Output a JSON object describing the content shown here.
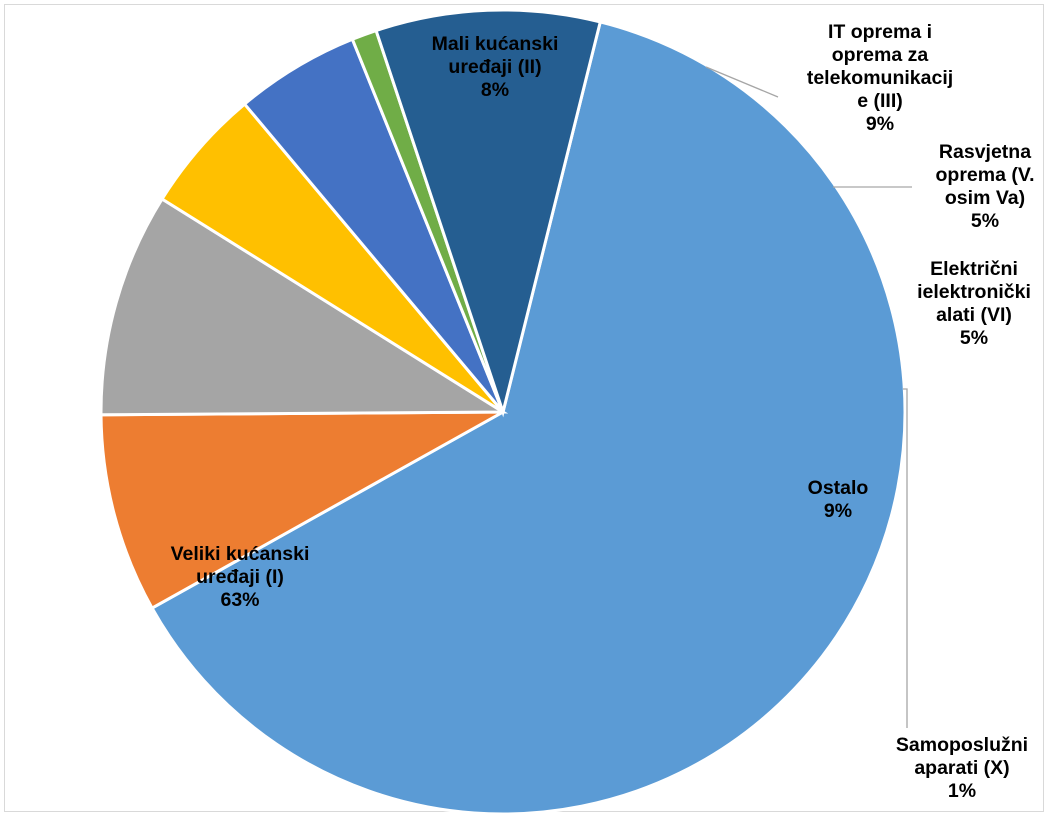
{
  "chart_data": {
    "type": "pie",
    "slices": [
      {
        "label_lines": [
          "Veliki kućanski",
          "uređaji (I)"
        ],
        "value": 63,
        "value_label": "63%",
        "color": "#5B9BD5"
      },
      {
        "label_lines": [
          "Mali kućanski",
          "uređaji (II)"
        ],
        "value": 8,
        "value_label": "8%",
        "color": "#ED7D31"
      },
      {
        "label_lines": [
          "IT oprema i",
          "oprema za",
          "telekomunikacij",
          "e (III)"
        ],
        "value": 9,
        "value_label": "9%",
        "color": "#A5A5A5"
      },
      {
        "label_lines": [
          "Rasvjetna",
          "oprema (V.",
          "osim Va)"
        ],
        "value": 5,
        "value_label": "5%",
        "color": "#FFC000"
      },
      {
        "label_lines": [
          "Električni",
          "ielektronički",
          "alati (VI)"
        ],
        "value": 5,
        "value_label": "5%",
        "color": "#4472C4"
      },
      {
        "label_lines": [
          "Samoposlužni",
          "aparati (X)"
        ],
        "value": 1,
        "value_label": "1%",
        "color": "#70AD47"
      },
      {
        "label_lines": [
          "Ostalo"
        ],
        "value": 9,
        "value_label": "9%",
        "color": "#255E91"
      }
    ]
  }
}
